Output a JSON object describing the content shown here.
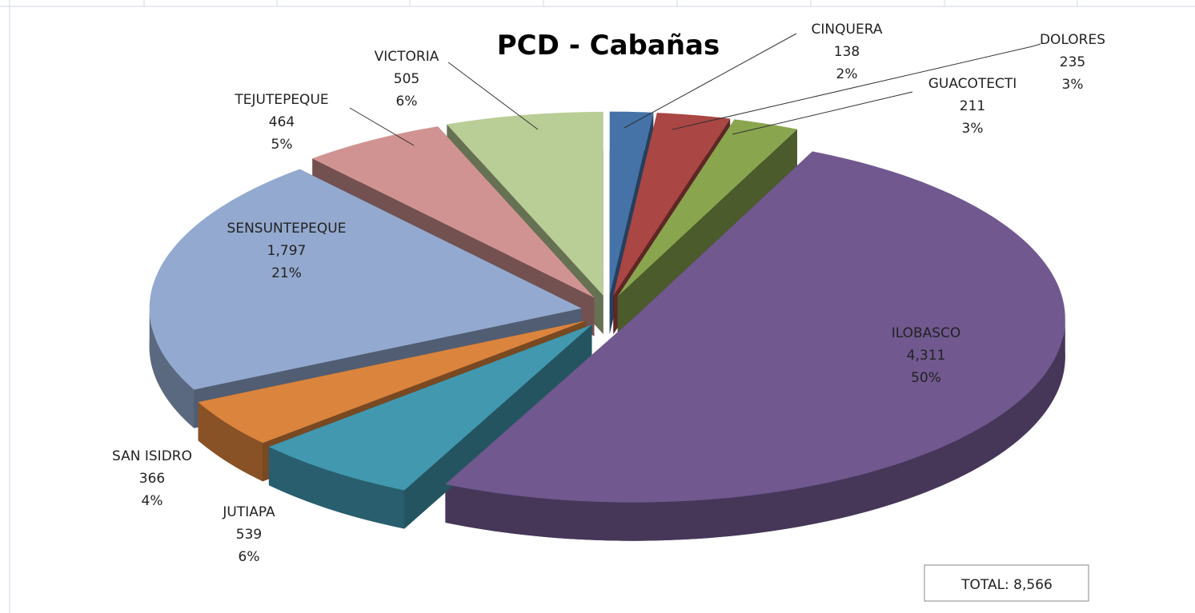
{
  "chart_data": {
    "type": "pie",
    "title": "PCD - Cabañas",
    "categories": [
      "CINQUERA",
      "DOLORES",
      "GUACOTECTI",
      "ILOBASCO",
      "JUTIAPA",
      "SAN ISIDRO",
      "SENSUNTEPEQUE",
      "TEJUTEPEQUE",
      "VICTORIA"
    ],
    "values": [
      138,
      235,
      211,
      4311,
      539,
      366,
      1797,
      464,
      505
    ],
    "value_labels": [
      "138",
      "235",
      "211",
      "4,311",
      "539",
      "366",
      "1,797",
      "464",
      "505"
    ],
    "percent_labels": [
      "2%",
      "3%",
      "3%",
      "50%",
      "6%",
      "4%",
      "21%",
      "5%",
      "6%"
    ],
    "colors": [
      "#4572a7",
      "#aa4643",
      "#89a54e",
      "#71588f",
      "#4198af",
      "#db843d",
      "#93a9cf",
      "#d19392",
      "#b9cd96"
    ],
    "total_label": "TOTAL:  8,566"
  }
}
